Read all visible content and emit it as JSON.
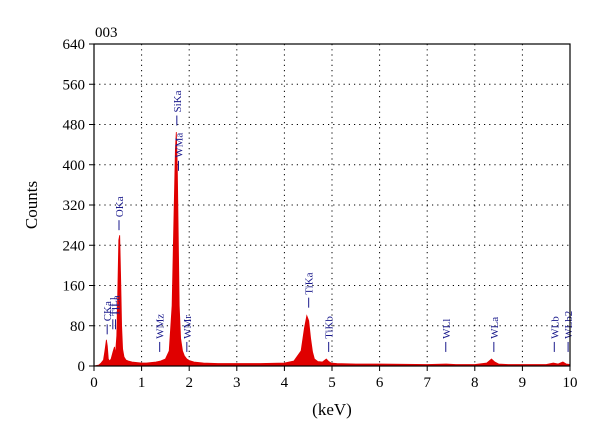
{
  "chart_data": {
    "type": "area",
    "title": "003",
    "xlabel": "(keV)",
    "ylabel": "Counts",
    "xlim": [
      0,
      10
    ],
    "ylim": [
      0,
      640
    ],
    "x_ticks": [
      "0",
      "1",
      "2",
      "3",
      "4",
      "5",
      "6",
      "7",
      "8",
      "9",
      "10"
    ],
    "y_ticks": [
      "0",
      "80",
      "160",
      "240",
      "320",
      "400",
      "480",
      "560",
      "640"
    ],
    "grid": true,
    "fill_color": "#e00000",
    "label_color": "#1a1a8c",
    "series": [
      {
        "x": [
          0.0,
          0.1,
          0.15,
          0.2,
          0.23,
          0.26,
          0.28,
          0.3,
          0.33,
          0.36,
          0.4,
          0.43,
          0.45,
          0.48,
          0.5,
          0.52,
          0.54,
          0.56,
          0.58,
          0.6,
          0.63,
          0.67,
          0.72,
          0.8,
          0.9,
          1.0,
          1.1,
          1.2,
          1.3,
          1.4,
          1.5,
          1.58,
          1.64,
          1.68,
          1.71,
          1.73,
          1.75,
          1.77,
          1.79,
          1.82,
          1.86,
          1.9,
          1.95,
          2.0,
          2.1,
          2.3,
          2.6,
          3.0,
          3.5,
          4.0,
          4.2,
          4.35,
          4.42,
          4.47,
          4.51,
          4.55,
          4.59,
          4.63,
          4.7,
          4.8,
          4.88,
          4.93,
          4.98,
          5.1,
          5.5,
          6.0,
          7.0,
          7.4,
          7.6,
          8.0,
          8.25,
          8.35,
          8.42,
          8.5,
          8.7,
          9.0,
          9.5,
          9.65,
          9.75,
          9.85,
          9.92,
          10.0
        ],
        "y": [
          0,
          2,
          6,
          12,
          30,
          52,
          40,
          14,
          10,
          14,
          28,
          38,
          22,
          60,
          150,
          250,
          260,
          170,
          80,
          34,
          18,
          12,
          10,
          8,
          7,
          6,
          6,
          7,
          8,
          10,
          14,
          30,
          120,
          300,
          430,
          465,
          395,
          250,
          120,
          55,
          30,
          20,
          14,
          11,
          8,
          6,
          5,
          5,
          5,
          6,
          10,
          30,
          75,
          100,
          90,
          55,
          28,
          14,
          9,
          8,
          14,
          9,
          6,
          5,
          4,
          4,
          3,
          4,
          3,
          3,
          6,
          14,
          8,
          4,
          3,
          3,
          3,
          6,
          4,
          8,
          4,
          3
        ]
      }
    ],
    "peak_labels": [
      {
        "text": "CKa",
        "x": 0.277,
        "y": 55
      },
      {
        "text": "TiLl",
        "x": 0.395,
        "y": 65
      },
      {
        "text": "TiLa",
        "x": 0.452,
        "y": 65
      },
      {
        "text": "OKa",
        "x": 0.525,
        "y": 262
      },
      {
        "text": "WMz",
        "x": 1.38,
        "y": 20
      },
      {
        "text": "SiKa",
        "x": 1.74,
        "y": 470
      },
      {
        "text": "WMa",
        "x": 1.775,
        "y": 380
      },
      {
        "text": "WMr",
        "x": 1.95,
        "y": 20
      },
      {
        "text": "TiKa",
        "x": 4.51,
        "y": 108
      },
      {
        "text": "TiKb",
        "x": 4.93,
        "y": 20
      },
      {
        "text": "WLl",
        "x": 7.39,
        "y": 20
      },
      {
        "text": "WLa",
        "x": 8.4,
        "y": 20
      },
      {
        "text": "WLb",
        "x": 9.67,
        "y": 20
      },
      {
        "text": "WLb2",
        "x": 9.96,
        "y": 20
      }
    ]
  }
}
